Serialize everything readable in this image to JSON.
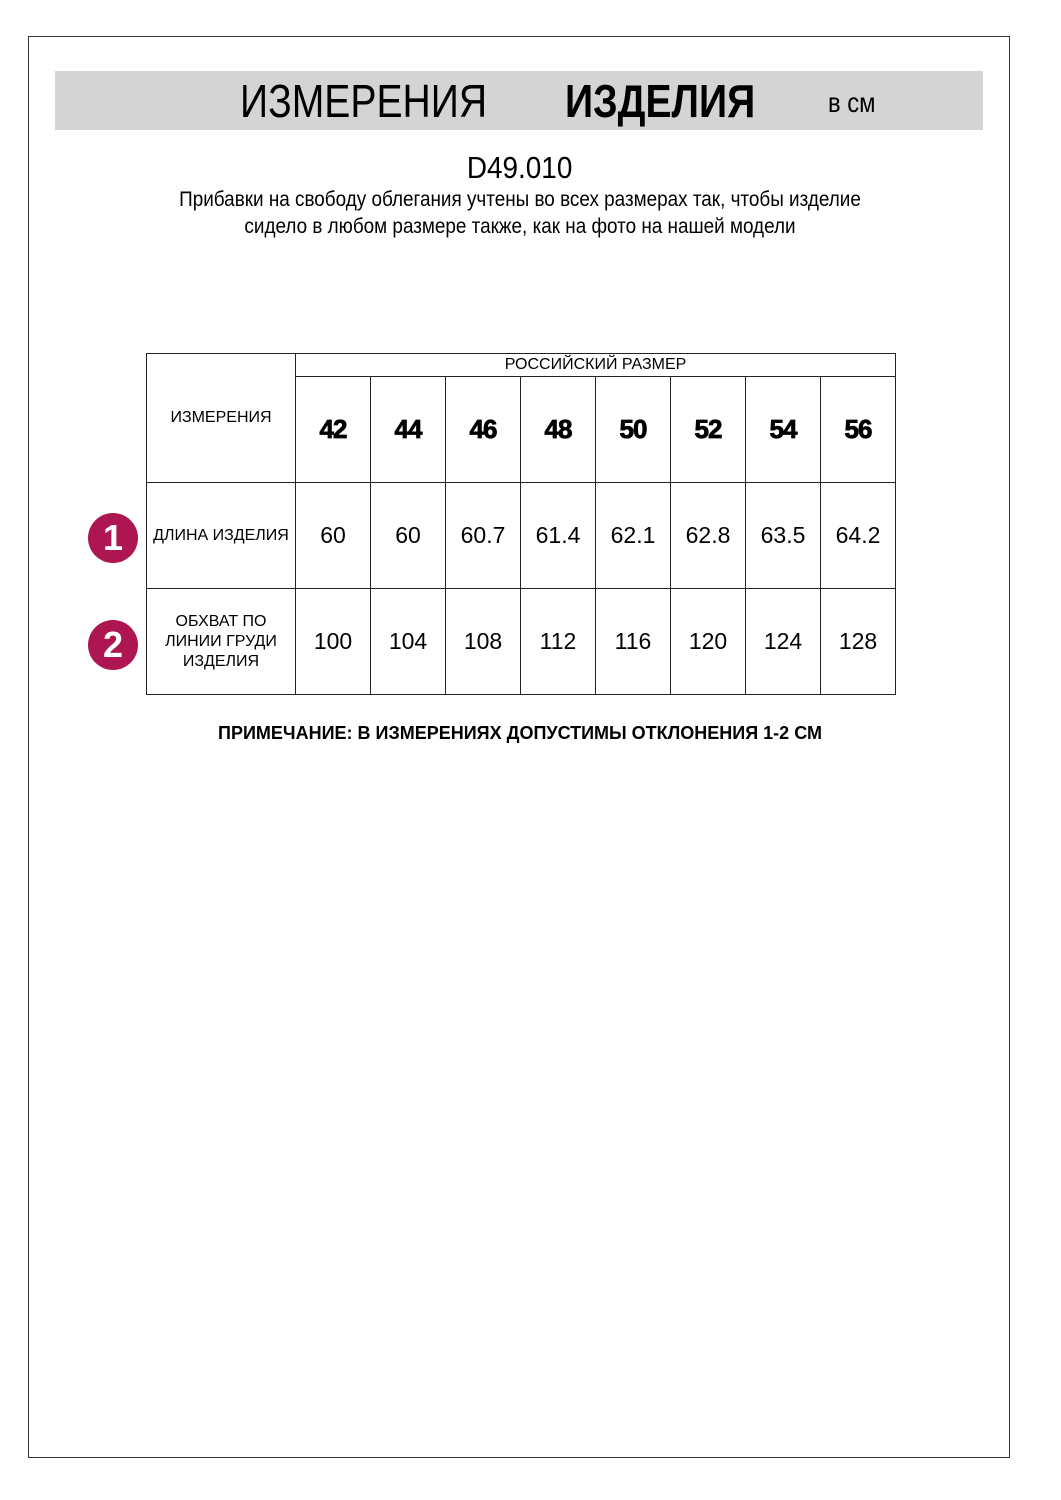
{
  "header": {
    "title_regular": "ИЗМЕРЕНИЯ",
    "title_bold": "ИЗДЕЛИЯ",
    "unit": "в см"
  },
  "model_code": "D49.010",
  "description": "Прибавки на свободу облегания учтены во всех размерах так, чтобы изделие сидело в любом размере также, как на фото на нашей модели",
  "table": {
    "corner_label": "ИЗМЕРЕНИЯ",
    "group_header": "РОССИЙСКИЙ РАЗМЕР",
    "sizes": [
      "42",
      "44",
      "46",
      "48",
      "50",
      "52",
      "54",
      "56"
    ],
    "rows": [
      {
        "badge": "1",
        "label": "ДЛИНА ИЗДЕЛИЯ",
        "values": [
          "60",
          "60",
          "60.7",
          "61.4",
          "62.1",
          "62.8",
          "63.5",
          "64.2"
        ]
      },
      {
        "badge": "2",
        "label": "ОБХВАТ ПО ЛИНИИ ГРУДИ ИЗДЕЛИЯ",
        "values": [
          "100",
          "104",
          "108",
          "112",
          "116",
          "120",
          "124",
          "128"
        ]
      }
    ]
  },
  "note": "ПРИМЕЧАНИЕ: В ИЗМЕРЕНИЯХ ДОПУСТИМЫ ОТКЛОНЕНИЯ 1-2 СМ",
  "colors": {
    "badge": "#ad1650",
    "header_band": "#d4d4d4"
  }
}
